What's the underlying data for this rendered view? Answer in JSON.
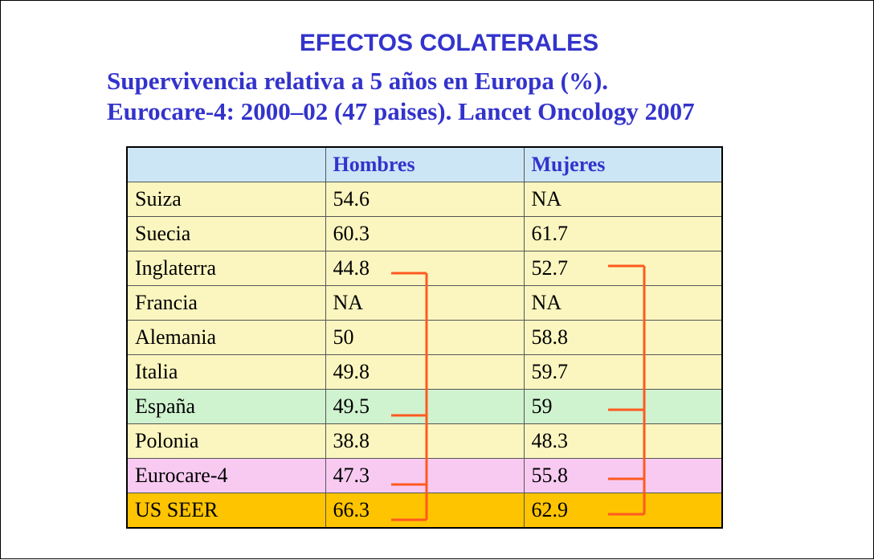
{
  "title": "EFECTOS COLATERALES",
  "subtitle_line1": "Supervivencia relativa a 5 años en Europa (%).",
  "subtitle_line2": "Eurocare-4: 2000–02 (47 paises). Lancet Oncology 2007",
  "table": {
    "headers": [
      "",
      "Hombres",
      "Mujeres"
    ],
    "rows": [
      {
        "country": "Suiza",
        "hombres": "54.6",
        "mujeres": "NA"
      },
      {
        "country": "Suecia",
        "hombres": "60.3",
        "mujeres": "61.7"
      },
      {
        "country": "Inglaterra",
        "hombres": "44.8",
        "mujeres": "52.7"
      },
      {
        "country": "Francia",
        "hombres": "NA",
        "mujeres": "NA"
      },
      {
        "country": "Alemania",
        "hombres": "50",
        "mujeres": "58.8"
      },
      {
        "country": "Italia",
        "hombres": "49.8",
        "mujeres": "59.7"
      },
      {
        "country": "España",
        "hombres": "49.5",
        "mujeres": "59"
      },
      {
        "country": "Polonia",
        "hombres": "38.8",
        "mujeres": "48.3"
      },
      {
        "country": "Eurocare-4",
        "hombres": "47.3",
        "mujeres": "55.8"
      },
      {
        "country": "US SEER",
        "hombres": "66.3",
        "mujeres": "62.9"
      }
    ]
  },
  "colors": {
    "title": "#3333cc",
    "header_row": "#cce6f5",
    "default_row": "#fbf6bf",
    "highlight_spain": "#cff2cf",
    "highlight_eurocare": "#f8caf2",
    "highlight_us": "#fec400",
    "bracket": "#ff5a1f"
  }
}
